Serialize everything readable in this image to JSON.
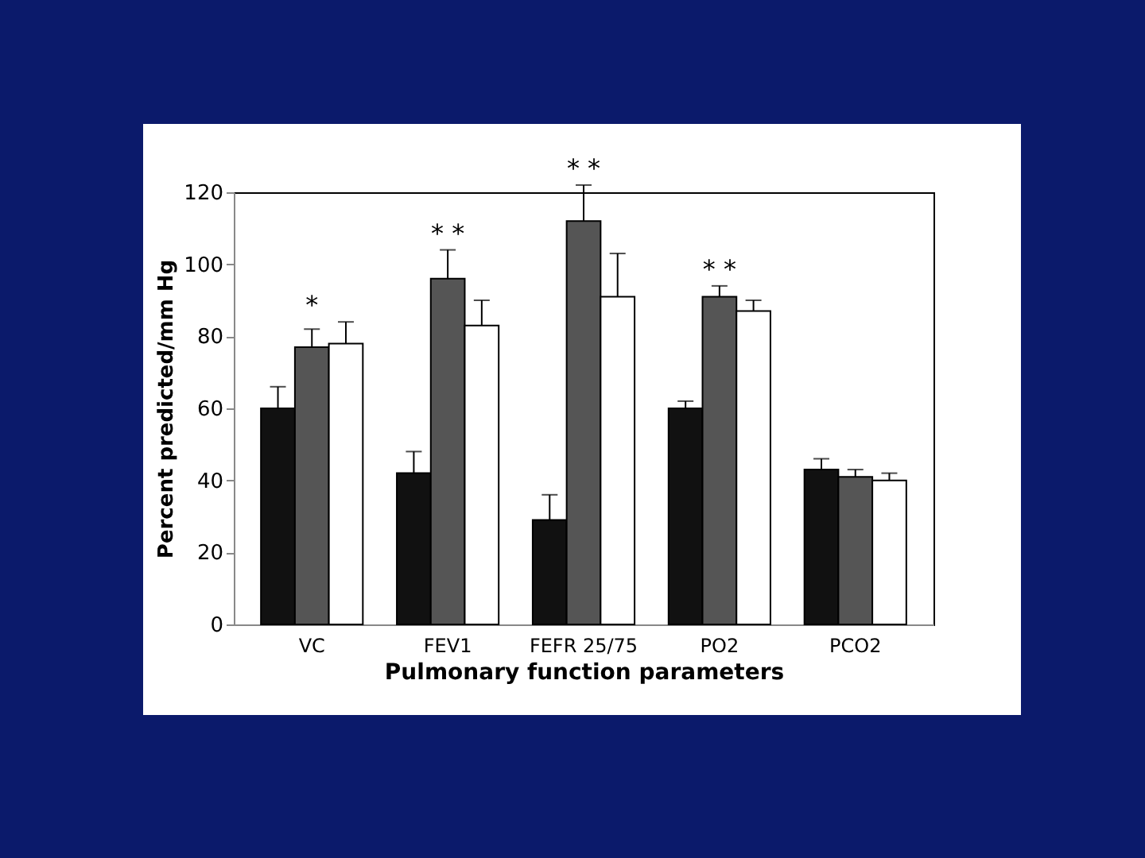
{
  "chart_data": {
    "type": "bar",
    "xlabel": "Pulmonary function parameters",
    "ylabel": "Percent predicted/mm Hg",
    "categories": [
      "VC",
      "FEV1",
      "FEFR 25/75",
      "PO2",
      "PCO2"
    ],
    "series": [
      {
        "color": "#111111",
        "values": [
          60,
          42,
          29,
          60,
          43
        ],
        "errors": [
          [
            60,
            66
          ],
          [
            42,
            48
          ],
          [
            29,
            36
          ],
          [
            60,
            62
          ],
          [
            43,
            46
          ]
        ]
      },
      {
        "color": "#555555",
        "values": [
          77,
          96,
          112,
          91,
          41
        ],
        "errors": [
          [
            77,
            82
          ],
          [
            96,
            104
          ],
          [
            112,
            122
          ],
          [
            91,
            94
          ],
          [
            41,
            43
          ]
        ]
      },
      {
        "color": "#ffffff",
        "values": [
          78,
          83,
          91,
          87,
          40
        ],
        "errors": [
          [
            78,
            84
          ],
          [
            83,
            90
          ],
          [
            91,
            103
          ],
          [
            87,
            90
          ],
          [
            40,
            42
          ]
        ]
      }
    ],
    "annotations": [
      {
        "text": "*",
        "x": "VC",
        "y": 84
      },
      {
        "text": "* *",
        "x": "FEV1",
        "y": 104
      },
      {
        "text": "* *",
        "x": "FEFR 25/75",
        "y": 122
      },
      {
        "text": "* *",
        "x": "PO2",
        "y": 94
      }
    ],
    "ylim": [
      0,
      120
    ],
    "yticks": [
      0,
      20,
      40,
      60,
      80,
      100,
      120
    ],
    "grid": false
  }
}
